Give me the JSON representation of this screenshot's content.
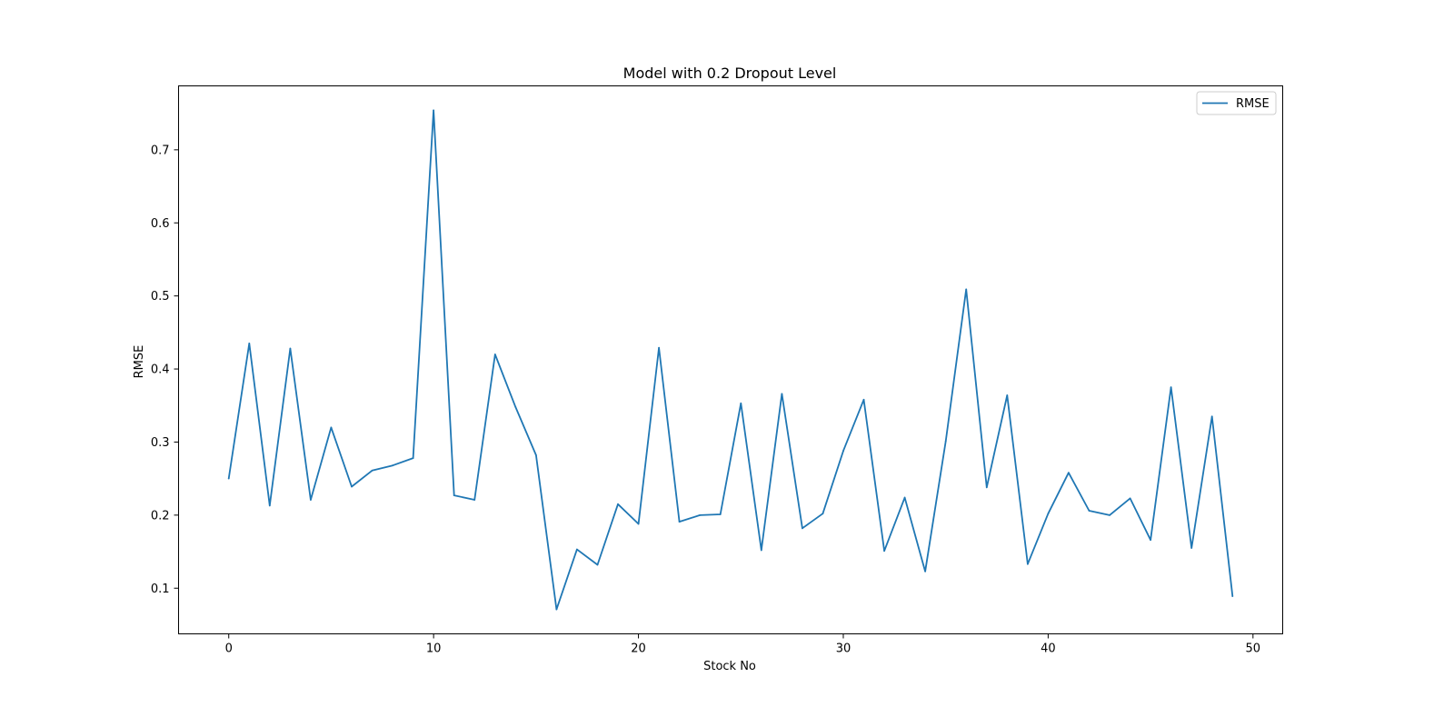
{
  "chart_data": {
    "type": "line",
    "title": "Model with 0.2 Dropout Level",
    "xlabel": "Stock No",
    "ylabel": "RMSE",
    "xlim": [
      -2.45,
      51.45
    ],
    "ylim": [
      0.0375,
      0.7875
    ],
    "xticks": [
      0,
      10,
      20,
      30,
      40,
      50
    ],
    "yticks": [
      0.1,
      0.2,
      0.3,
      0.4,
      0.5,
      0.6,
      0.7
    ],
    "xtick_labels": [
      "0",
      "10",
      "20",
      "30",
      "40",
      "50"
    ],
    "ytick_labels": [
      "0.1",
      "0.2",
      "0.3",
      "0.4",
      "0.5",
      "0.6",
      "0.7"
    ],
    "grid": false,
    "legend_position": "top-right",
    "series": [
      {
        "name": "RMSE",
        "color": "#1f77b4",
        "x": [
          0,
          1,
          2,
          3,
          4,
          5,
          6,
          7,
          8,
          9,
          10,
          11,
          12,
          13,
          14,
          15,
          16,
          17,
          18,
          19,
          20,
          21,
          22,
          23,
          24,
          25,
          26,
          27,
          28,
          29,
          30,
          31,
          32,
          33,
          34,
          35,
          36,
          37,
          38,
          39,
          40,
          41,
          42,
          43,
          44,
          45,
          46,
          47,
          48,
          49
        ],
        "values": [
          0.25,
          0.435,
          0.213,
          0.428,
          0.221,
          0.32,
          0.239,
          0.261,
          0.268,
          0.278,
          0.754,
          0.227,
          0.221,
          0.42,
          0.348,
          0.282,
          0.071,
          0.153,
          0.132,
          0.215,
          0.188,
          0.429,
          0.191,
          0.2,
          0.201,
          0.353,
          0.152,
          0.366,
          0.182,
          0.202,
          0.288,
          0.358,
          0.151,
          0.224,
          0.123,
          0.301,
          0.509,
          0.238,
          0.364,
          0.133,
          0.202,
          0.258,
          0.206,
          0.2,
          0.223,
          0.166,
          0.375,
          0.155,
          0.335,
          0.089
        ]
      }
    ]
  }
}
